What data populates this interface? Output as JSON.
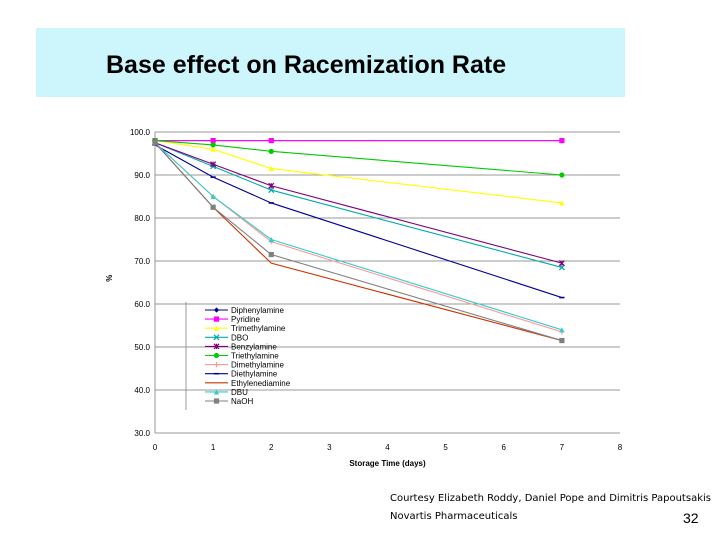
{
  "slide": {
    "title": "Base effect on Racemization Rate",
    "credit_line1": "Courtesy Elizabeth Roddy, Daniel Pope and Dimitris Papoutsakis",
    "credit_line2": "Novartis Pharmaceuticals",
    "page_number": "32"
  },
  "chart_data": {
    "type": "line",
    "title": "",
    "xlabel": "Storage Time (days)",
    "ylabel": "%",
    "xlim": [
      0,
      8
    ],
    "ylim": [
      30,
      100
    ],
    "x_ticks": [
      "0",
      "1",
      "2",
      "3",
      "4",
      "5",
      "6",
      "7",
      "8"
    ],
    "y_ticks": [
      "30.0",
      "40.0",
      "50.0",
      "60.0",
      "70.0",
      "80.0",
      "90.0",
      "100.0"
    ],
    "grid": "horizontal",
    "legend_position": "lower-left",
    "series": [
      {
        "name": "Diphenylamine",
        "color": "#000080",
        "marker": "diamond",
        "x": [
          0,
          7
        ],
        "y": [
          98,
          98
        ]
      },
      {
        "name": "Pyridine",
        "color": "#ff00ff",
        "marker": "square",
        "x": [
          0,
          1,
          2,
          7
        ],
        "y": [
          98,
          98,
          98,
          98
        ]
      },
      {
        "name": "Trimethylamine",
        "color": "#ffff00",
        "marker": "triangle",
        "x": [
          0,
          1,
          2,
          7
        ],
        "y": [
          98,
          96,
          91.5,
          83.5
        ]
      },
      {
        "name": "DBO",
        "color": "#00aaaa",
        "marker": "x",
        "x": [
          0,
          1,
          2,
          7
        ],
        "y": [
          97.5,
          92,
          86.5,
          68.5
        ]
      },
      {
        "name": "Benzylamine",
        "color": "#800080",
        "marker": "star",
        "x": [
          0,
          1,
          2,
          7
        ],
        "y": [
          97.5,
          92.5,
          87.5,
          69.5
        ]
      },
      {
        "name": "Triethylamine",
        "color": "#00cc00",
        "marker": "circle",
        "x": [
          0,
          1,
          2,
          7
        ],
        "y": [
          98,
          97,
          95.5,
          90
        ]
      },
      {
        "name": "Dimethylamine",
        "color": "#ff9999",
        "marker": "plus",
        "x": [
          0,
          1,
          2,
          7
        ],
        "y": [
          97.5,
          85,
          74.5,
          53.5
        ]
      },
      {
        "name": "Diethylamine",
        "color": "#000099",
        "marker": "dash",
        "x": [
          0,
          1,
          2,
          7
        ],
        "y": [
          97,
          89.5,
          83.5,
          61.5
        ]
      },
      {
        "name": "Ethylenediamine",
        "color": "#cc3300",
        "marker": "none",
        "x": [
          0,
          1,
          2,
          7
        ],
        "y": [
          97.5,
          82.5,
          69.5,
          51.5
        ]
      },
      {
        "name": "DBU",
        "color": "#33cccc",
        "marker": "triangle",
        "x": [
          0,
          1,
          2,
          7
        ],
        "y": [
          97.5,
          85,
          75,
          54
        ]
      },
      {
        "name": "NaOH",
        "color": "#808080",
        "marker": "square",
        "x": [
          0,
          1,
          2,
          7
        ],
        "y": [
          97.5,
          82.5,
          71.5,
          51.5
        ]
      }
    ]
  }
}
